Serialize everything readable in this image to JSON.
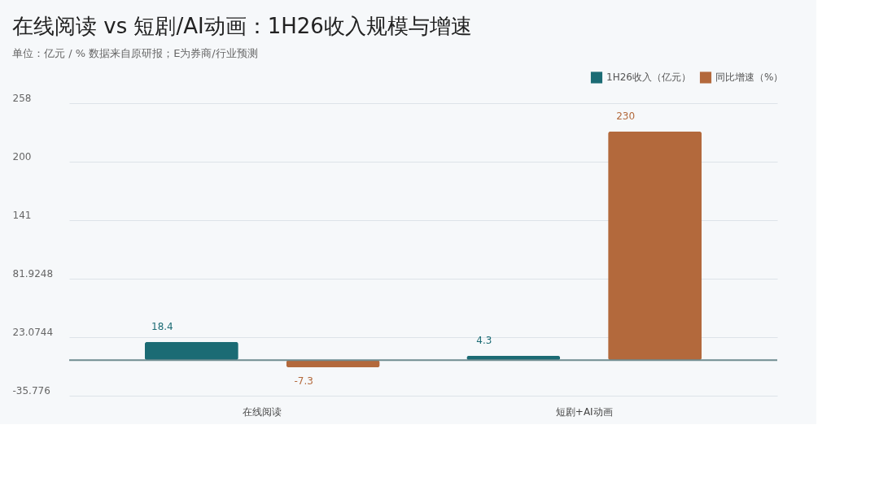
{
  "chart_data": {
    "type": "bar",
    "title": "在线阅读 vs 短剧/AI动画：1H26收入规模与增速",
    "subtitle": "单位：亿元 / %    数据来自原研报；E为券商/行业预测",
    "categories": [
      "在线阅读",
      "短剧+AI动画"
    ],
    "series": [
      {
        "name": "1H26收入（亿元）",
        "color": "#1b6b74",
        "values": [
          18.4,
          4.3
        ]
      },
      {
        "name": "同比增速（%）",
        "color": "#b3693c",
        "values": [
          -7.3,
          230
        ]
      }
    ],
    "ylim": [
      -35.776,
      258.476
    ],
    "yticks": [
      -35.776,
      23.0744,
      81.9248,
      {
        "value": 140.7752,
        "label": "141"
      },
      {
        "value": 199.6256,
        "label": "200"
      },
      {
        "value": 258.476,
        "label": "258"
      }
    ],
    "ref_lines": [
      {
        "axis": "y",
        "value": 0,
        "color": "#6f8c90"
      }
    ],
    "grid": "y",
    "legend": "top right",
    "data_labels": true
  }
}
